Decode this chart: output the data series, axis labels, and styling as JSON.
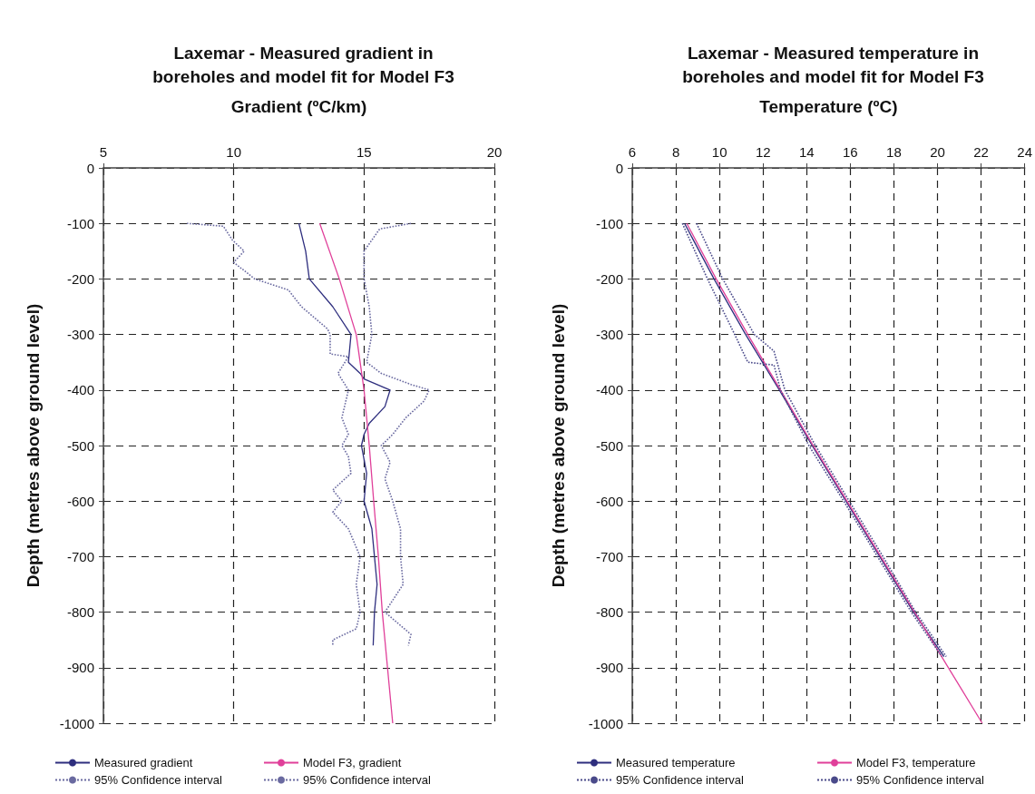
{
  "chart_data": [
    {
      "type": "line",
      "title": "Laxemar - Measured gradient in boreholes and model fit for Model F3",
      "xlabel": "Gradient (ºC/km)",
      "ylabel": "Depth (metres above ground level)",
      "xlim": [
        5,
        20
      ],
      "xticks": [
        5,
        10,
        15,
        20
      ],
      "ylim": [
        -1000,
        0
      ],
      "yticks": [
        0,
        -100,
        -200,
        -300,
        -400,
        -500,
        -600,
        -700,
        -800,
        -900,
        -1000
      ],
      "grid": true,
      "legend": "bottom",
      "marker": "none",
      "series": [
        {
          "name": "Measured gradient",
          "color": "#2e2e7e",
          "line_style": "solid",
          "x": [
            12.5,
            12.76,
            12.9,
            13.8,
            14.5,
            14.4,
            14.85,
            15.0,
            16.0,
            15.8,
            15.2,
            15.0,
            14.9,
            15.1,
            15.0,
            15.3,
            15.4,
            15.5,
            15.4,
            15.35
          ],
          "values": [
            -100,
            -150,
            -200,
            -250,
            -300,
            -350,
            -370,
            -380,
            -400,
            -430,
            -460,
            -480,
            -500,
            -550,
            -600,
            -650,
            -700,
            -750,
            -800,
            -860
          ]
        },
        {
          "name": "Model F3, gradient",
          "color": "#e0409a",
          "line_style": "solid",
          "x": [
            13.3,
            14.05,
            14.7,
            15.0,
            15.2,
            15.37,
            15.55,
            15.7,
            15.9,
            16.1
          ],
          "values": [
            -100,
            -200,
            -300,
            -400,
            -500,
            -600,
            -700,
            -800,
            -900,
            -1000
          ]
        },
        {
          "name": "95% Confidence interval",
          "color": "#6a6aa0",
          "line_style": "dotted",
          "x": [
            8.2,
            9.6,
            9.95,
            10.4,
            10.0,
            10.8,
            12.1,
            12.6,
            13.6,
            13.7,
            13.7,
            14.4,
            14.0,
            14.4,
            14.15,
            14.4,
            14.15,
            14.4,
            14.5,
            13.8,
            14.15,
            13.8,
            14.4,
            14.85,
            14.7,
            14.85,
            14.7,
            13.8,
            13.8
          ],
          "values": [
            -100,
            -105,
            -130,
            -150,
            -170,
            -200,
            -220,
            -250,
            -290,
            -300,
            -335,
            -340,
            -370,
            -400,
            -450,
            -480,
            -500,
            -520,
            -550,
            -580,
            -600,
            -620,
            -650,
            -700,
            -750,
            -800,
            -830,
            -850,
            -860
          ]
        },
        {
          "name": "95% Confidence interval",
          "color": "#6a6aa0",
          "line_style": "dotted",
          "x": [
            16.8,
            15.6,
            15.0,
            15.0,
            15.2,
            15.3,
            15.1,
            15.66,
            16.8,
            17.5,
            17.3,
            16.6,
            16.1,
            15.66,
            16.0,
            15.8,
            16.1,
            16.4,
            16.4,
            16.5,
            15.8,
            16.8,
            16.7
          ],
          "values": [
            -100,
            -110,
            -150,
            -200,
            -250,
            -300,
            -350,
            -370,
            -390,
            -400,
            -420,
            -450,
            -480,
            -500,
            -530,
            -560,
            -600,
            -650,
            -700,
            -750,
            -800,
            -840,
            -860
          ]
        }
      ]
    },
    {
      "type": "line",
      "title": "Laxemar - Measured temperature in boreholes and model fit for Model F3",
      "xlabel": "Temperature (ºC)",
      "ylabel": "Depth (metres above ground level)",
      "xlim": [
        6,
        24
      ],
      "xticks": [
        6,
        8,
        10,
        12,
        14,
        16,
        18,
        20,
        22,
        24
      ],
      "ylim": [
        -1000,
        0
      ],
      "yticks": [
        0,
        -100,
        -200,
        -300,
        -400,
        -500,
        -600,
        -700,
        -800,
        -900,
        -1000
      ],
      "grid": true,
      "legend": "bottom",
      "marker": "none",
      "series": [
        {
          "name": "Measured temperature",
          "color": "#2e2e7e",
          "line_style": "solid",
          "x": [
            8.4,
            9.75,
            11.2,
            12.75,
            14.25,
            15.8,
            17.35,
            18.9,
            20.3
          ],
          "values": [
            -100,
            -200,
            -300,
            -400,
            -500,
            -600,
            -700,
            -800,
            -880
          ]
        },
        {
          "name": "Model F3, temperature",
          "color": "#e0409a",
          "line_style": "solid",
          "x": [
            8.5,
            9.85,
            11.3,
            12.8,
            14.3,
            15.85,
            17.4,
            18.95,
            20.5,
            22.05
          ],
          "values": [
            -100,
            -200,
            -300,
            -400,
            -500,
            -600,
            -700,
            -800,
            -900,
            -1000
          ]
        },
        {
          "name": "95% Confidence interval",
          "color": "#4a4a8a",
          "line_style": "dotted",
          "x": [
            8.3,
            9.45,
            10.7,
            11.3,
            12.5,
            12.8,
            14.1,
            15.7,
            17.25,
            18.8,
            20.2
          ],
          "values": [
            -100,
            -200,
            -300,
            -350,
            -355,
            -400,
            -500,
            -600,
            -700,
            -800,
            -880
          ]
        },
        {
          "name": "95% Confidence interval",
          "color": "#4a4a8a",
          "line_style": "dotted",
          "x": [
            8.95,
            10.15,
            11.6,
            12.5,
            13.0,
            14.4,
            15.95,
            17.5,
            19.0,
            20.4
          ],
          "values": [
            -100,
            -200,
            -300,
            -330,
            -400,
            -500,
            -600,
            -700,
            -800,
            -880
          ]
        }
      ]
    }
  ]
}
